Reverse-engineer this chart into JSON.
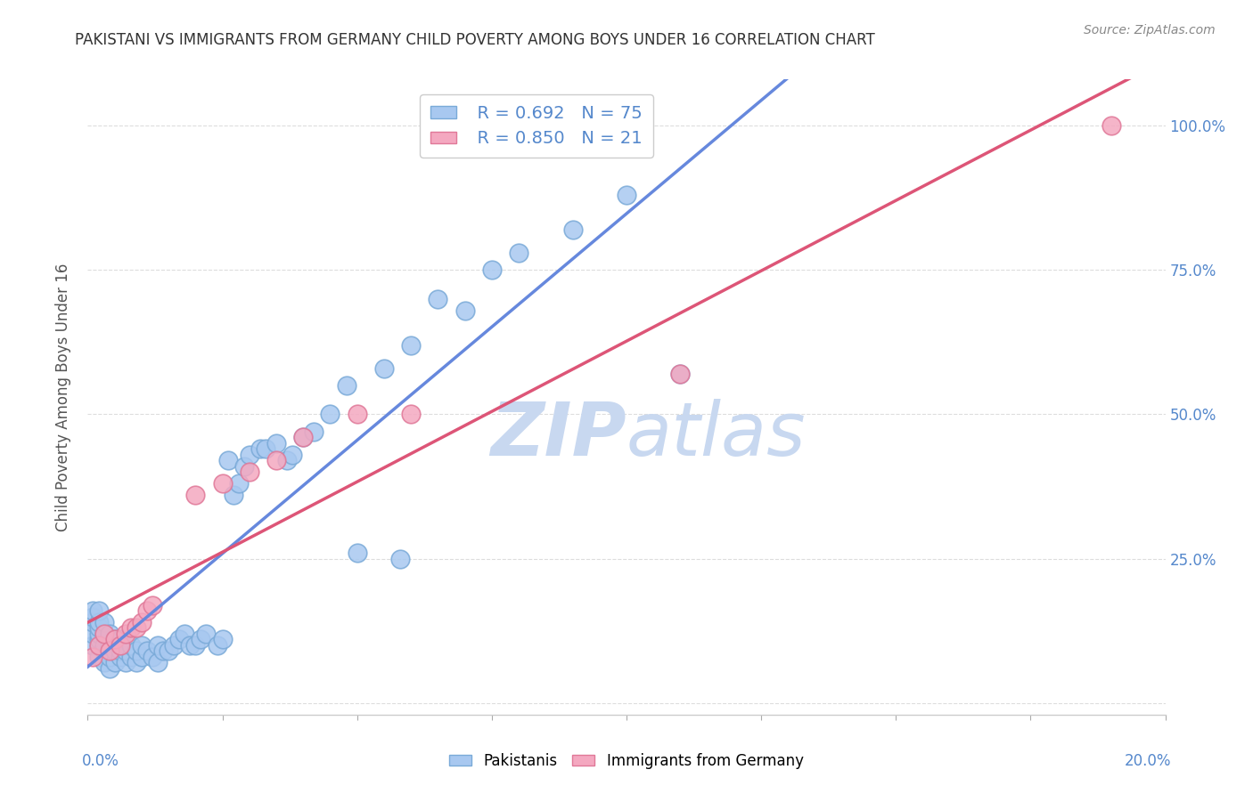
{
  "title": "PAKISTANI VS IMMIGRANTS FROM GERMANY CHILD POVERTY AMONG BOYS UNDER 16 CORRELATION CHART",
  "source": "Source: ZipAtlas.com",
  "ylabel": "Child Poverty Among Boys Under 16",
  "xlim": [
    0,
    0.2
  ],
  "ylim": [
    -0.02,
    1.08
  ],
  "blue_color": "#A8C8F0",
  "pink_color": "#F4A8C0",
  "blue_edge_color": "#7AAAD8",
  "pink_edge_color": "#E07898",
  "blue_line_color": "#6688DD",
  "pink_line_color": "#DD5577",
  "watermark_color": "#C8D8F0",
  "legend_text_color": "#5588CC",
  "right_axis_color": "#5588CC",
  "grid_color": "#DDDDDD",
  "title_color": "#333333",
  "source_color": "#888888",
  "legend_R1": "R = 0.692",
  "legend_N1": "N = 75",
  "legend_R2": "R = 0.850",
  "legend_N2": "N = 21",
  "pakistani_x": [
    0.001,
    0.001,
    0.001,
    0.001,
    0.001,
    0.002,
    0.002,
    0.002,
    0.002,
    0.002,
    0.002,
    0.002,
    0.003,
    0.003,
    0.003,
    0.003,
    0.003,
    0.004,
    0.004,
    0.004,
    0.004,
    0.005,
    0.005,
    0.005,
    0.006,
    0.006,
    0.006,
    0.007,
    0.007,
    0.008,
    0.008,
    0.009,
    0.009,
    0.01,
    0.01,
    0.011,
    0.012,
    0.013,
    0.013,
    0.014,
    0.015,
    0.016,
    0.017,
    0.018,
    0.019,
    0.02,
    0.021,
    0.022,
    0.024,
    0.025,
    0.026,
    0.027,
    0.028,
    0.029,
    0.03,
    0.032,
    0.033,
    0.035,
    0.037,
    0.038,
    0.04,
    0.042,
    0.045,
    0.048,
    0.05,
    0.055,
    0.058,
    0.06,
    0.065,
    0.07,
    0.075,
    0.08,
    0.09,
    0.1,
    0.11
  ],
  "pakistani_y": [
    0.1,
    0.12,
    0.14,
    0.15,
    0.16,
    0.08,
    0.1,
    0.11,
    0.12,
    0.13,
    0.14,
    0.16,
    0.07,
    0.09,
    0.1,
    0.12,
    0.14,
    0.06,
    0.08,
    0.1,
    0.12,
    0.07,
    0.09,
    0.11,
    0.08,
    0.09,
    0.11,
    0.07,
    0.09,
    0.08,
    0.1,
    0.07,
    0.09,
    0.08,
    0.1,
    0.09,
    0.08,
    0.07,
    0.1,
    0.09,
    0.09,
    0.1,
    0.11,
    0.12,
    0.1,
    0.1,
    0.11,
    0.12,
    0.1,
    0.11,
    0.42,
    0.36,
    0.38,
    0.41,
    0.43,
    0.44,
    0.44,
    0.45,
    0.42,
    0.43,
    0.46,
    0.47,
    0.5,
    0.55,
    0.26,
    0.58,
    0.25,
    0.62,
    0.7,
    0.68,
    0.75,
    0.78,
    0.82,
    0.88,
    0.57
  ],
  "germany_x": [
    0.001,
    0.002,
    0.003,
    0.004,
    0.005,
    0.006,
    0.007,
    0.008,
    0.009,
    0.01,
    0.011,
    0.012,
    0.02,
    0.025,
    0.03,
    0.035,
    0.04,
    0.05,
    0.06,
    0.11,
    0.19
  ],
  "germany_y": [
    0.08,
    0.1,
    0.12,
    0.09,
    0.11,
    0.1,
    0.12,
    0.13,
    0.13,
    0.14,
    0.16,
    0.17,
    0.36,
    0.38,
    0.4,
    0.42,
    0.46,
    0.5,
    0.5,
    0.57,
    1.0
  ]
}
